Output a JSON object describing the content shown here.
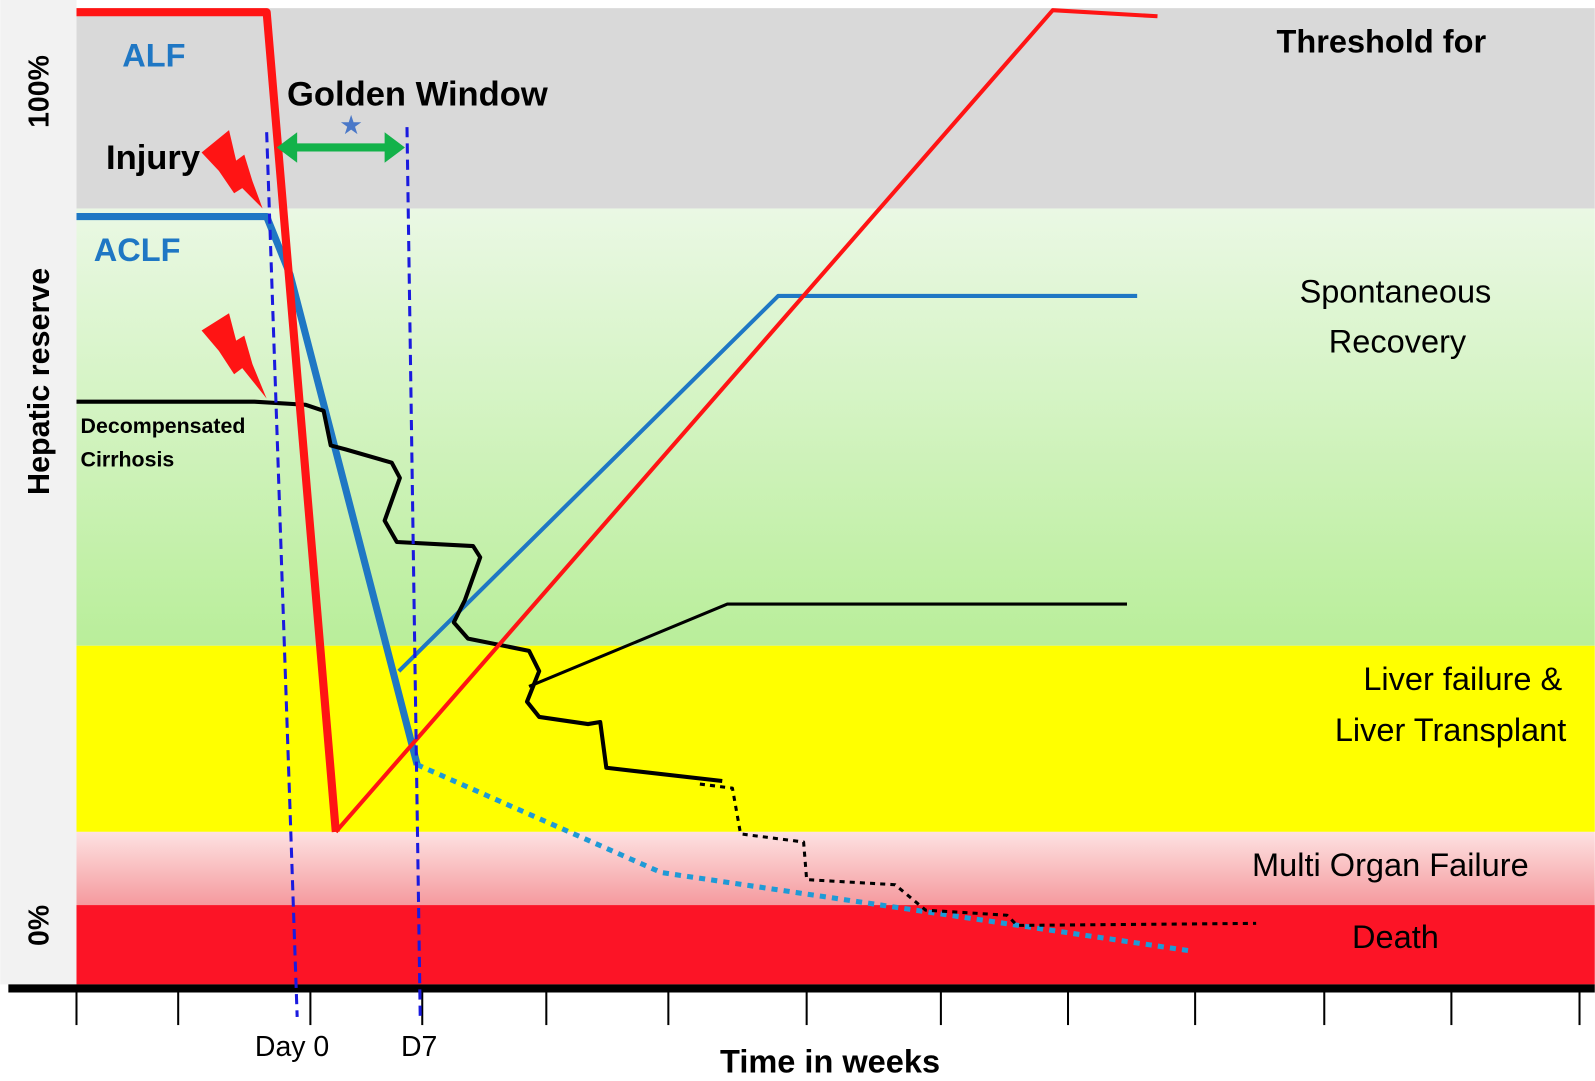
{
  "labels": {
    "alf": "ALF",
    "golden_window": "Golden Window",
    "injury": "Injury",
    "aclf": "ACLF",
    "cirrhosis": [
      "Decompensated",
      "Cirrhosis"
    ],
    "threshold": "Threshold for",
    "recovery": [
      "Spontaneous",
      "Recovery"
    ],
    "liver_failure": [
      "Liver failure &",
      "Liver Transplant"
    ],
    "mof": "Multi Organ Failure",
    "death": "Death"
  },
  "axes": {
    "y_top": "100%",
    "y_bottom": "0%",
    "y_label": "Hepatic reserve",
    "day0": "Day 0",
    "d7": "D7",
    "x_label": "Time in weeks"
  }
}
